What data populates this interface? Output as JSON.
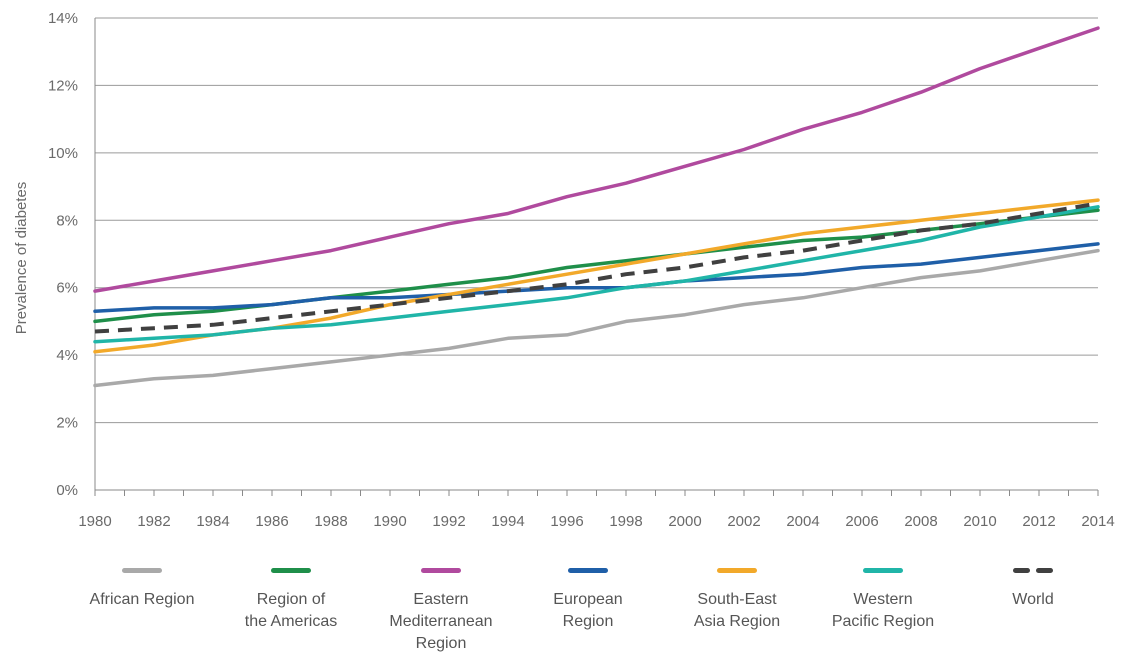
{
  "chart_data": {
    "type": "line",
    "title": "",
    "xlabel": "",
    "ylabel": "Prevalence of diabetes",
    "ylim": [
      0,
      14
    ],
    "xlim": [
      1980,
      2014
    ],
    "y_ticks": [
      "0%",
      "2%",
      "4%",
      "6%",
      "8%",
      "10%",
      "12%",
      "14%"
    ],
    "x_ticks": [
      "1980",
      "1982",
      "1984",
      "1986",
      "1988",
      "1990",
      "1992",
      "1994",
      "1996",
      "1998",
      "2000",
      "2002",
      "2004",
      "2006",
      "2008",
      "2010",
      "2012",
      "2014"
    ],
    "grid": "horizontal",
    "legend_position": "bottom",
    "x": [
      1980,
      1982,
      1984,
      1986,
      1988,
      1990,
      1992,
      1994,
      1996,
      1998,
      2000,
      2002,
      2004,
      2006,
      2008,
      2010,
      2012,
      2014
    ],
    "series": [
      {
        "name": "African Region",
        "color": "#a9a9a9",
        "dashed": false,
        "values": [
          3.1,
          3.3,
          3.4,
          3.6,
          3.8,
          4.0,
          4.2,
          4.5,
          4.6,
          5.0,
          5.2,
          5.5,
          5.7,
          6.0,
          6.3,
          6.5,
          6.8,
          7.1
        ]
      },
      {
        "name": "Region of\nthe Americas",
        "color": "#1f8f4a",
        "dashed": false,
        "values": [
          5.0,
          5.2,
          5.3,
          5.5,
          5.7,
          5.9,
          6.1,
          6.3,
          6.6,
          6.8,
          7.0,
          7.2,
          7.4,
          7.5,
          7.7,
          7.9,
          8.1,
          8.3
        ]
      },
      {
        "name": "Eastern\nMediterranean\nRegion",
        "color": "#b04a9e",
        "dashed": false,
        "values": [
          5.9,
          6.2,
          6.5,
          6.8,
          7.1,
          7.5,
          7.9,
          8.2,
          8.7,
          9.1,
          9.6,
          10.1,
          10.7,
          11.2,
          11.8,
          12.5,
          13.1,
          13.7
        ]
      },
      {
        "name": "European\nRegion",
        "color": "#1f5fa8",
        "dashed": false,
        "values": [
          5.3,
          5.4,
          5.4,
          5.5,
          5.7,
          5.7,
          5.8,
          5.9,
          6.0,
          6.0,
          6.2,
          6.3,
          6.4,
          6.6,
          6.7,
          6.9,
          7.1,
          7.3
        ]
      },
      {
        "name": "South-East\nAsia Region",
        "color": "#f2a92a",
        "dashed": false,
        "values": [
          4.1,
          4.3,
          4.6,
          4.8,
          5.1,
          5.5,
          5.8,
          6.1,
          6.4,
          6.7,
          7.0,
          7.3,
          7.6,
          7.8,
          8.0,
          8.2,
          8.4,
          8.6
        ]
      },
      {
        "name": "Western\nPacific Region",
        "color": "#20b5a8",
        "dashed": false,
        "values": [
          4.4,
          4.5,
          4.6,
          4.8,
          4.9,
          5.1,
          5.3,
          5.5,
          5.7,
          6.0,
          6.2,
          6.5,
          6.8,
          7.1,
          7.4,
          7.8,
          8.1,
          8.4
        ]
      },
      {
        "name": "World",
        "color": "#404040",
        "dashed": true,
        "values": [
          4.7,
          4.8,
          4.9,
          5.1,
          5.3,
          5.5,
          5.7,
          5.9,
          6.1,
          6.4,
          6.6,
          6.9,
          7.1,
          7.4,
          7.7,
          7.9,
          8.2,
          8.5
        ]
      }
    ]
  }
}
